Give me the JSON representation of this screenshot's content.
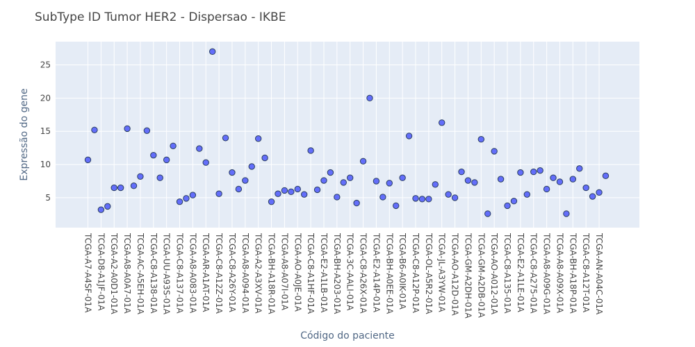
{
  "chart_data": {
    "type": "scatter",
    "title": "SubType ID Tumor HER2 - Dispersao - IKBE",
    "xlabel": "Código do paciente",
    "ylabel": "Expressão do gene",
    "ylim": [
      0.5,
      28.5
    ],
    "y_ticks": [
      5,
      10,
      15,
      20,
      25
    ],
    "grid": true,
    "legend": "none",
    "colors": {
      "plot_background": "#E5ECF6",
      "grid": "#FFFFFF",
      "marker": "#636EFA",
      "marker_outline": "#2A3F5F"
    },
    "x_tick_labels": [
      "TCGA-A7-A4SF-01A",
      "TCGA-D8-A1JF-01A",
      "TCGA-A2-A0D1-01A",
      "TCGA-A8-A0A7-01A",
      "TCGA-AC-A5EH-01A",
      "TCGA-C8-A138-01A",
      "TCGA-UU-A93S-01A",
      "TCGA-C8-A137-01A",
      "TCGA-A8-A083-01A",
      "TCGA-AR-A1AT-01A",
      "TCGA-C8-A12Z-01A",
      "TCGA-C8-A26Y-01A",
      "TCGA-A8-A094-01A",
      "TCGA-A2-A3XV-01A",
      "TCGA-BH-A18R-01A",
      "TCGA-A8-A07I-01A",
      "TCGA-AO-A0JE-01A",
      "TCGA-C8-A1HF-01A",
      "TCGA-E2-A1LB-01A",
      "TCGA-BH-A203-01A",
      "TCGA-3C-AALI-01A",
      "TCGA-C8-A26X-01A",
      "TCGA-E2-A14P-01A",
      "TCGA-BH-A0EE-01A",
      "TCGA-B6-A0IK-01A",
      "TCGA-C8-A12P-01A",
      "TCGA-OL-A5R2-01A",
      "TCGA-JL-A3YW-01A",
      "TCGA-AO-A12D-01A",
      "TCGA-GM-A2DH-01A",
      "TCGA-GM-A2DB-01A",
      "TCGA-AO-A012-01A",
      "TCGA-C8-A135-01A",
      "TCGA-E2-A1LE-01A",
      "TCGA-C8-A275-01A",
      "TCGA-A8-A09G-01A",
      "TCGA-A8-A09X-01A",
      "TCGA-BH-A18P-01A",
      "TCGA-C8-A12T-01A",
      "TCGA-AN-A04C-01A"
    ],
    "y": [
      10.7,
      15.2,
      3.2,
      3.7,
      6.5,
      6.5,
      15.4,
      6.8,
      8.2,
      15.1,
      11.4,
      8.0,
      10.7,
      12.8,
      4.4,
      4.9,
      5.4,
      12.4,
      10.3,
      27.0,
      5.6,
      14.0,
      8.8,
      6.3,
      7.6,
      9.7,
      13.9,
      11.0,
      4.4,
      5.6,
      6.1,
      5.9,
      6.3,
      5.5,
      12.1,
      6.2,
      7.6,
      8.8,
      5.1,
      7.3,
      8.0,
      4.2,
      10.5,
      20.0,
      7.5,
      5.1,
      7.2,
      3.8,
      8.0,
      14.3,
      4.9,
      4.8,
      4.8,
      7.0,
      16.3,
      5.5,
      5.0,
      8.9,
      7.6,
      7.3,
      13.8,
      2.6,
      12.0,
      7.8,
      3.8,
      4.5,
      8.8,
      5.5,
      8.9,
      9.1,
      6.3,
      8.0,
      7.4,
      2.6,
      7.8,
      9.4,
      6.5,
      5.2,
      5.8,
      8.3
    ]
  }
}
